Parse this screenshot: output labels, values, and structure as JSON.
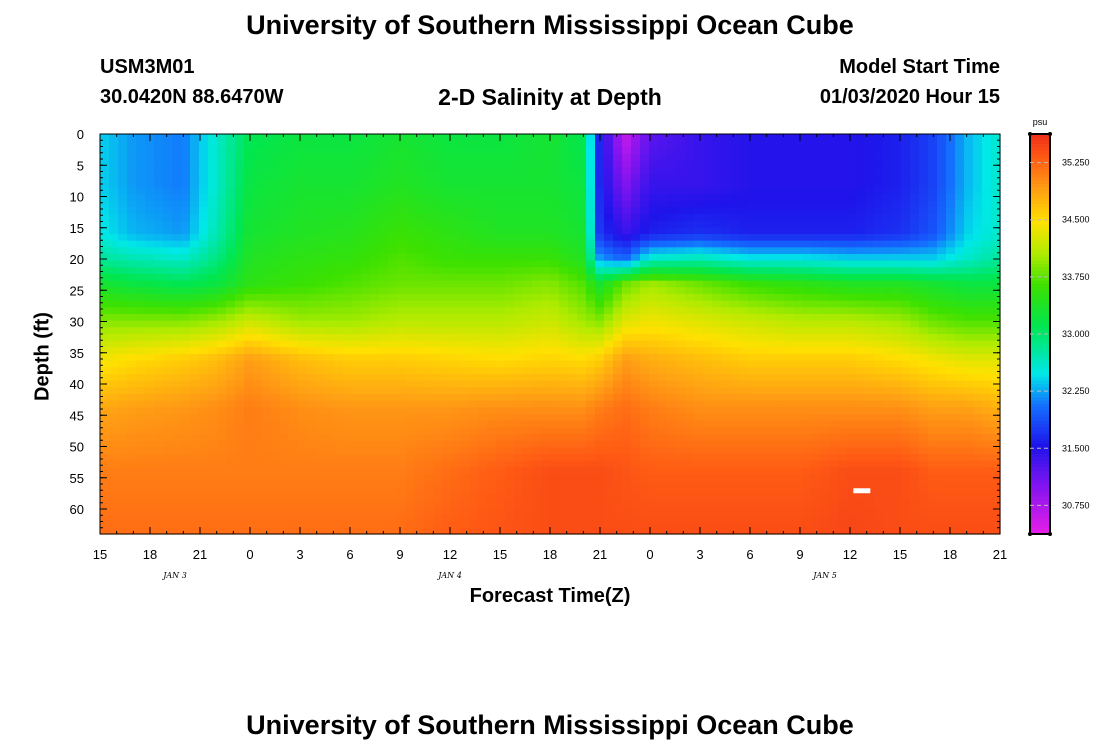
{
  "header": {
    "title": "University of Southern Mississippi Ocean Cube",
    "station_id": "USM3M01",
    "station_coords": "30.0420N 88.6470W",
    "plot_title": "2-D Salinity at Depth",
    "start_label": "Model Start Time",
    "start_value": "01/03/2020 Hour 15"
  },
  "footer": {
    "title": "University of Southern Mississippi Ocean Cube"
  },
  "chart_data": {
    "type": "heatmap",
    "title": "2-D Salinity at Depth",
    "xlabel": "Forecast Time(Z)",
    "ylabel": "Depth (ft)",
    "x_ticks": [
      "15",
      "18",
      "21",
      "0",
      "3",
      "6",
      "9",
      "12",
      "15",
      "18",
      "21",
      "0",
      "3",
      "6",
      "9",
      "12",
      "15",
      "18",
      "21"
    ],
    "x_hours": [
      0,
      3,
      6,
      9,
      12,
      15,
      18,
      21,
      24,
      27,
      30,
      33,
      36,
      39,
      42,
      45,
      48,
      51,
      54
    ],
    "day_labels": [
      {
        "text": "JAN 3",
        "hour": 4.5
      },
      {
        "text": "JAN 4",
        "hour": 21
      },
      {
        "text": "JAN 5",
        "hour": 43.5
      }
    ],
    "y_ticks": [
      0,
      5,
      10,
      15,
      20,
      25,
      30,
      35,
      40,
      45,
      50,
      55,
      60
    ],
    "ylim": [
      64,
      0
    ],
    "xlim": [
      0,
      54
    ],
    "colorbar": {
      "unit": "psu",
      "range": [
        30.375,
        35.625
      ],
      "labels": [
        "35.250",
        "34.500",
        "33.750",
        "33.000",
        "32.250",
        "31.500",
        "30.750"
      ],
      "label_values": [
        35.25,
        34.5,
        33.75,
        33.0,
        32.25,
        31.5,
        30.75
      ]
    },
    "depths": [
      0,
      8,
      16,
      20,
      24,
      30,
      36,
      44,
      54,
      64
    ],
    "columns": [
      {
        "hour": 0,
        "sal": [
          32.4,
          32.4,
          32.5,
          32.8,
          33.3,
          33.9,
          34.4,
          34.85,
          35.1,
          35.2
        ]
      },
      {
        "hour": 2,
        "sal": [
          32.2,
          32.2,
          32.3,
          32.7,
          33.2,
          33.9,
          34.5,
          34.9,
          35.1,
          35.2
        ]
      },
      {
        "hour": 5,
        "sal": [
          32.1,
          32.1,
          32.2,
          32.6,
          33.1,
          33.9,
          34.6,
          34.95,
          35.1,
          35.2
        ]
      },
      {
        "hour": 7,
        "sal": [
          32.6,
          32.6,
          32.7,
          32.9,
          33.2,
          34.0,
          34.7,
          35.0,
          35.1,
          35.2
        ]
      },
      {
        "hour": 9,
        "sal": [
          33.1,
          33.2,
          33.3,
          33.4,
          33.5,
          34.2,
          34.9,
          35.1,
          35.1,
          35.2
        ]
      },
      {
        "hour": 12,
        "sal": [
          33.2,
          33.3,
          33.4,
          33.5,
          33.6,
          34.0,
          34.7,
          35.0,
          35.1,
          35.2
        ]
      },
      {
        "hour": 15,
        "sal": [
          33.2,
          33.3,
          33.45,
          33.55,
          33.7,
          34.0,
          34.6,
          34.95,
          35.1,
          35.2
        ]
      },
      {
        "hour": 18,
        "sal": [
          33.3,
          33.4,
          33.6,
          33.7,
          33.8,
          34.1,
          34.6,
          34.95,
          35.1,
          35.2
        ]
      },
      {
        "hour": 21,
        "sal": [
          33.2,
          33.3,
          33.5,
          33.6,
          33.8,
          34.1,
          34.55,
          34.95,
          35.2,
          35.3
        ]
      },
      {
        "hour": 24,
        "sal": [
          33.2,
          33.3,
          33.4,
          33.6,
          33.8,
          34.1,
          34.5,
          35.0,
          35.3,
          35.35
        ]
      },
      {
        "hour": 27,
        "sal": [
          33.3,
          33.3,
          33.4,
          33.6,
          33.9,
          34.2,
          34.55,
          35.0,
          35.4,
          35.4
        ]
      },
      {
        "hour": 29,
        "sal": [
          33.1,
          33.2,
          33.3,
          33.4,
          33.7,
          34.0,
          34.5,
          35.0,
          35.4,
          35.4
        ]
      },
      {
        "hour": 30,
        "sal": [
          31.6,
          31.6,
          31.7,
          32.2,
          33.3,
          33.9,
          34.6,
          35.1,
          35.4,
          35.4
        ]
      },
      {
        "hour": 31.5,
        "sal": [
          30.6,
          31.0,
          31.4,
          32.0,
          33.8,
          34.3,
          34.9,
          35.2,
          35.35,
          35.4
        ]
      },
      {
        "hour": 33,
        "sal": [
          31.2,
          31.4,
          31.6,
          32.6,
          34.0,
          34.4,
          34.8,
          35.1,
          35.3,
          35.4
        ]
      },
      {
        "hour": 36,
        "sal": [
          31.4,
          31.4,
          31.7,
          32.7,
          33.8,
          34.3,
          34.7,
          35.0,
          35.3,
          35.4
        ]
      },
      {
        "hour": 39,
        "sal": [
          31.5,
          31.5,
          31.6,
          32.5,
          33.6,
          34.2,
          34.6,
          35.0,
          35.3,
          35.4
        ]
      },
      {
        "hour": 42,
        "sal": [
          31.5,
          31.5,
          31.6,
          32.5,
          33.5,
          34.1,
          34.6,
          35.0,
          35.3,
          35.4
        ]
      },
      {
        "hour": 45,
        "sal": [
          31.5,
          31.5,
          31.6,
          32.4,
          33.4,
          34.1,
          34.6,
          35.0,
          35.4,
          35.45
        ]
      },
      {
        "hour": 48,
        "sal": [
          31.6,
          31.6,
          31.7,
          32.4,
          33.4,
          34.0,
          34.5,
          35.0,
          35.4,
          35.4
        ]
      },
      {
        "hour": 50,
        "sal": [
          31.8,
          31.8,
          31.9,
          32.4,
          33.3,
          33.8,
          34.4,
          34.9,
          35.3,
          35.4
        ]
      },
      {
        "hour": 52,
        "sal": [
          32.3,
          32.3,
          32.4,
          32.6,
          33.2,
          33.7,
          34.3,
          34.9,
          35.3,
          35.4
        ]
      },
      {
        "hour": 54,
        "sal": [
          32.6,
          32.6,
          32.6,
          32.8,
          33.2,
          33.7,
          34.3,
          34.8,
          35.3,
          35.4
        ]
      }
    ]
  }
}
